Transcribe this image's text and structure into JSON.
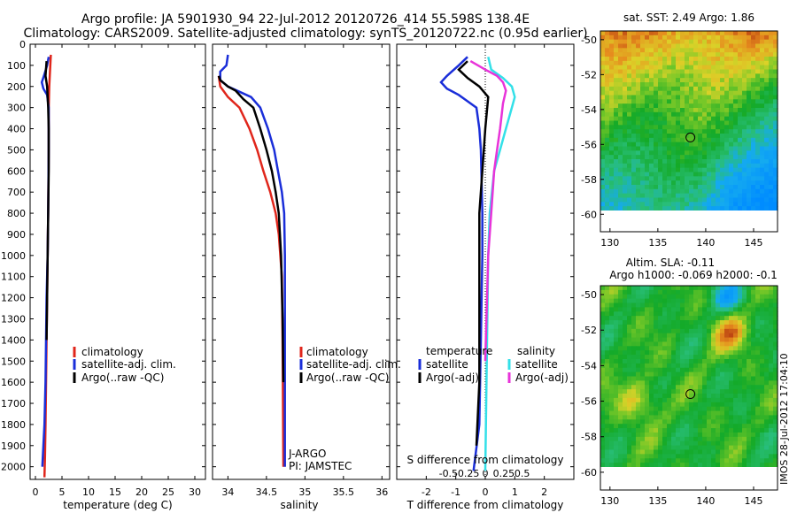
{
  "header": {
    "title_line1": "Argo profile: JA 5901930_94 22-Jul-2012 20120726_414 55.598S 138.4E",
    "title_line2": "Climatology: CARS2009. Satellite-adjusted climatology: synTS_20120722.nc (0.95d earlier)"
  },
  "colors": {
    "climatology": "#e0261b",
    "satellite": "#1a2ed9",
    "argo": "#000000",
    "satellite_salinity": "#33e0e8",
    "argo_salinity": "#e833d9"
  },
  "chart_data": [
    {
      "type": "line",
      "name": "temperature",
      "xlabel": "temperature (deg C)",
      "ylabel": "",
      "xlim": [
        -1,
        32
      ],
      "ylim": [
        2060,
        0
      ],
      "xticks": [
        0,
        5,
        10,
        15,
        20,
        25,
        30
      ],
      "yticks": [
        0,
        100,
        200,
        300,
        400,
        500,
        600,
        700,
        800,
        900,
        1000,
        1100,
        1200,
        1300,
        1400,
        1500,
        1600,
        1700,
        1800,
        1900,
        2000
      ],
      "legend": [
        "climatology",
        "satellite-adj. clim.",
        "Argo(..raw -QC)"
      ],
      "series": [
        {
          "name": "climatology",
          "color": "#e0261b",
          "x": [
            2.9,
            2.8,
            2.7,
            2.6,
            2.5,
            2.5,
            2.4,
            2.3,
            2.2,
            2.1,
            2.0,
            1.9,
            1.8,
            1.7
          ],
          "y": [
            50,
            100,
            150,
            200,
            300,
            500,
            800,
            1000,
            1200,
            1400,
            1600,
            1800,
            1950,
            2050
          ]
        },
        {
          "name": "satellite-adj. clim.",
          "color": "#1a2ed9",
          "x": [
            2.5,
            2.2,
            1.6,
            1.2,
            1.5,
            2.2,
            2.5,
            2.5,
            2.4,
            2.3,
            2.1,
            2.0,
            1.9,
            1.7,
            1.3
          ],
          "y": [
            60,
            100,
            150,
            180,
            210,
            240,
            300,
            500,
            800,
            1000,
            1200,
            1400,
            1600,
            1800,
            2000
          ]
        },
        {
          "name": "Argo(..raw -QC)",
          "color": "#000000",
          "x": [
            2.1,
            1.9,
            2.2,
            2.4,
            2.5,
            2.5,
            2.4,
            2.3,
            2.2,
            2.1
          ],
          "y": [
            80,
            150,
            200,
            300,
            400,
            600,
            800,
            1000,
            1200,
            1400
          ]
        }
      ]
    },
    {
      "type": "line",
      "name": "salinity",
      "xlabel": "salinity",
      "ylabel": "",
      "xlim": [
        33.8,
        36.1
      ],
      "ylim": [
        2060,
        0
      ],
      "xticks": [
        34,
        34.5,
        35,
        35.5,
        36
      ],
      "legend": [
        "climatology",
        "satellite-adj. clim.",
        "Argo(..raw -QC)"
      ],
      "annotations": [
        "J-ARGO",
        "PI: JAMSTEC"
      ],
      "series": [
        {
          "name": "climatology",
          "color": "#e0261b",
          "x": [
            33.88,
            33.9,
            34.0,
            34.15,
            34.28,
            34.38,
            34.46,
            34.55,
            34.62,
            34.66,
            34.7,
            34.71,
            34.72
          ],
          "y": [
            150,
            200,
            250,
            300,
            400,
            500,
            600,
            700,
            800,
            900,
            1100,
            1400,
            2000
          ]
        },
        {
          "name": "satellite-adj. clim.",
          "color": "#1a2ed9",
          "x": [
            34.0,
            33.98,
            33.9,
            33.9,
            34.0,
            34.3,
            34.42,
            34.52,
            34.6,
            34.65,
            34.7,
            34.73,
            34.74,
            34.74,
            34.74
          ],
          "y": [
            50,
            100,
            130,
            170,
            200,
            250,
            300,
            400,
            500,
            600,
            700,
            800,
            1000,
            1500,
            2000
          ]
        },
        {
          "name": "Argo(..raw -QC)",
          "color": "#000000",
          "x": [
            33.88,
            33.9,
            34.0,
            34.1,
            34.2,
            34.33,
            34.42,
            34.5,
            34.57,
            34.62,
            34.66,
            34.69,
            34.71,
            34.72
          ],
          "y": [
            150,
            170,
            200,
            220,
            260,
            300,
            400,
            500,
            600,
            700,
            800,
            1000,
            1300,
            1600
          ]
        }
      ]
    },
    {
      "type": "line",
      "name": "difference from climatology",
      "xlabel": "T difference from climatology",
      "xlabel_top": "S difference from climatology",
      "xlim": [
        -3,
        3
      ],
      "ylim": [
        2060,
        0
      ],
      "xticks": [
        -2,
        -1,
        0,
        1,
        2
      ],
      "xticks_s_labels": [
        "-0.5",
        "-0.25",
        "0",
        "0.25",
        "0.5"
      ],
      "legend_temperature": {
        "title": "temperature",
        "items": [
          "satellite",
          "Argo(-adj)"
        ]
      },
      "legend_salinity": {
        "title": "salinity",
        "items": [
          "satellite",
          "Argo(-adj)"
        ]
      },
      "series": [
        {
          "name": "temperature satellite",
          "color": "#1a2ed9",
          "x": [
            -0.6,
            -0.9,
            -1.3,
            -1.5,
            -1.3,
            -0.9,
            -0.6,
            -0.3,
            -0.2,
            -0.15,
            -0.1,
            -0.1,
            -0.15,
            -0.2,
            -0.4
          ],
          "y": [
            60,
            100,
            150,
            180,
            210,
            240,
            270,
            300,
            400,
            500,
            800,
            1000,
            1400,
            1800,
            2020
          ]
        },
        {
          "name": "temperature Argo(-adj)",
          "color": "#000000",
          "x": [
            -0.6,
            -0.9,
            -0.6,
            -0.2,
            0.1,
            0.0,
            -0.1,
            -0.2,
            -0.2,
            -0.2,
            -0.2,
            -0.3
          ],
          "y": [
            80,
            120,
            160,
            200,
            250,
            400,
            600,
            800,
            1000,
            1200,
            1600,
            1900
          ]
        },
        {
          "name": "salinity satellite",
          "color": "#33e0e8",
          "x": [
            0.1,
            0.2,
            0.6,
            0.9,
            1.0,
            0.9,
            0.7,
            0.5,
            0.3,
            0.15,
            0.1,
            0.0
          ],
          "y": [
            60,
            120,
            160,
            200,
            250,
            300,
            400,
            500,
            600,
            800,
            1000,
            2020
          ]
        },
        {
          "name": "salinity Argo(-adj)",
          "color": "#e833d9",
          "x": [
            -0.5,
            0.0,
            0.4,
            0.6,
            0.7,
            0.6,
            0.5,
            0.4,
            0.3,
            0.2,
            0.1,
            0.0
          ],
          "y": [
            80,
            120,
            150,
            180,
            220,
            280,
            400,
            500,
            600,
            800,
            1000,
            1500
          ]
        }
      ]
    },
    {
      "type": "heatmap",
      "name": "sea surface temperature map",
      "title": "sat. SST: 2.49 Argo: 1.86",
      "xlim": [
        129,
        147.5
      ],
      "ylim": [
        -61,
        -49.5
      ],
      "xticks": [
        130,
        135,
        140,
        145
      ],
      "yticks": [
        -50,
        -52,
        -54,
        -56,
        -58,
        -60
      ],
      "marker": {
        "lon": 138.4,
        "lat": -55.6
      }
    },
    {
      "type": "heatmap",
      "name": "sea level anomaly map",
      "title_line1": "Altim. SLA: -0.11",
      "title_line2": "Argo h1000: -0.069 h2000: -0.1",
      "xlim": [
        129,
        147.5
      ],
      "ylim": [
        -61,
        -49.5
      ],
      "xticks": [
        130,
        135,
        140,
        145
      ],
      "yticks": [
        -50,
        -52,
        -54,
        -56,
        -58,
        -60
      ],
      "marker": {
        "lon": 138.4,
        "lat": -55.6
      }
    }
  ],
  "footer": {
    "stamp": "IMOS 28-Jul-2012 17:04:10"
  }
}
